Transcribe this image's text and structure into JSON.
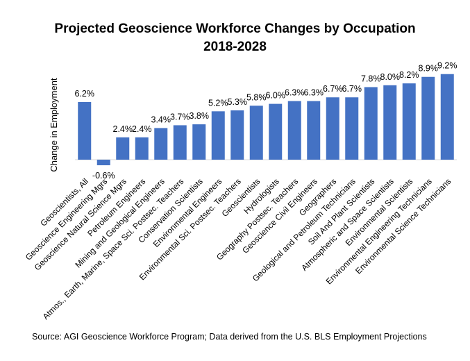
{
  "chart_data": {
    "type": "bar",
    "title_line1": "Projected Geoscience Workforce Changes by Occupation",
    "title_line2": "2018-2028",
    "xlabel": "",
    "ylabel": "Change  in Employment",
    "categories": [
      "Geoscientists, All",
      "Geoscience Engineering Mgrs",
      "Geoscience Natural Science Mgrs",
      "Petroleum Engineers",
      "Mining and Geological Engineers",
      "Atmos., Earth, Marine, Space Sci. Postsec. Teachers",
      "Conservation Scientists",
      "Environmental Engineers",
      "Environmental Sci. Postsec. Teachers",
      "Geoscientists",
      "Hydrologists",
      "Geography Postsec. Teachers",
      "Geoscience Civil Engineers",
      "Geographers",
      "Geological and Petroleum Technicians",
      "Soil And Plant Scientists",
      "Atmospheric and Space Scientists",
      "Environmental Scientists",
      "Environmental Engineering Technicians",
      "Environmental Science Technicians"
    ],
    "values": [
      6.2,
      -0.6,
      2.4,
      2.4,
      3.4,
      3.7,
      3.8,
      5.2,
      5.3,
      5.8,
      6.0,
      6.3,
      6.3,
      6.7,
      6.7,
      7.8,
      8.0,
      8.2,
      8.9,
      9.2
    ],
    "value_labels": [
      "6.2%",
      "-0.6%",
      "2.4%",
      "2.4%",
      "3.4%",
      "3.7%",
      "3.8%",
      "5.2%",
      "5.3%",
      "5.8%",
      "6.0%",
      "6.3%",
      "6.3%",
      "6.7%",
      "6.7%",
      "7.8%",
      "8.0%",
      "8.2%",
      "8.9%",
      "9.2%"
    ],
    "ylim": [
      -0.6,
      9.2
    ],
    "bar_color": "#4472C4",
    "grid": false
  },
  "source": "Source: AGI Geoscience Workforce Program; Data derived from the U.S. BLS Employment Projections"
}
